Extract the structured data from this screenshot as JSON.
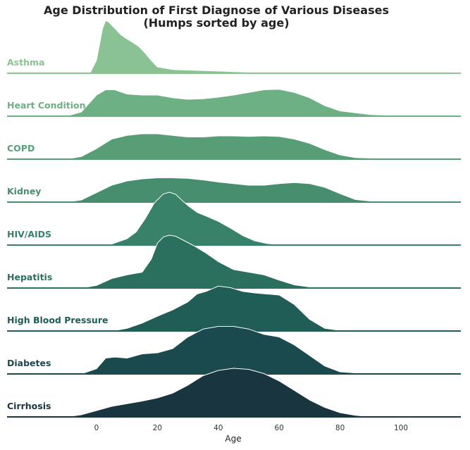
{
  "chart_data": {
    "type": "area",
    "subtype": "ridgeline",
    "title_line1": "Age Distribution of First Diagnose of Various Diseases",
    "title_line2": "(Humps sorted by age)",
    "xlabel": "Age",
    "ylabel": "",
    "xlim": [
      -29,
      121
    ],
    "xticks": [
      0,
      20,
      40,
      60,
      80,
      100
    ],
    "grid": false,
    "legend": "none",
    "series": [
      {
        "name": "Asthma",
        "color": "#8bc293",
        "x": [
          -4,
          -2,
          0,
          1,
          2,
          3,
          4,
          6,
          8,
          10,
          12,
          14,
          16,
          18,
          20,
          25,
          30,
          40,
          50,
          60,
          70,
          80,
          90,
          100
        ],
        "density": [
          0.0,
          0.02,
          0.25,
          0.55,
          0.85,
          1.0,
          0.97,
          0.85,
          0.73,
          0.65,
          0.58,
          0.5,
          0.38,
          0.24,
          0.12,
          0.07,
          0.06,
          0.04,
          0.02,
          0.01,
          0.01,
          0.0,
          0.0,
          0.0
        ]
      },
      {
        "name": "Heart Condition",
        "color": "#6db083",
        "x": [
          -10,
          -5,
          0,
          3,
          6,
          10,
          15,
          20,
          25,
          30,
          35,
          40,
          45,
          50,
          55,
          60,
          65,
          70,
          75,
          80,
          90,
          100,
          110
        ],
        "density": [
          0.0,
          0.08,
          0.4,
          0.5,
          0.5,
          0.42,
          0.4,
          0.4,
          0.35,
          0.32,
          0.33,
          0.36,
          0.4,
          0.45,
          0.5,
          0.51,
          0.45,
          0.35,
          0.2,
          0.1,
          0.03,
          0.01,
          0.0
        ]
      },
      {
        "name": "COPD",
        "color": "#579e76",
        "x": [
          -10,
          -5,
          0,
          5,
          10,
          15,
          20,
          25,
          30,
          35,
          40,
          45,
          50,
          55,
          60,
          65,
          70,
          75,
          80,
          85,
          90,
          100,
          110
        ],
        "density": [
          0.0,
          0.05,
          0.2,
          0.38,
          0.45,
          0.48,
          0.48,
          0.45,
          0.42,
          0.42,
          0.44,
          0.44,
          0.43,
          0.44,
          0.43,
          0.38,
          0.3,
          0.18,
          0.08,
          0.03,
          0.02,
          0.01,
          0.0
        ]
      },
      {
        "name": "Kidney",
        "color": "#478e6e",
        "x": [
          -10,
          -5,
          0,
          5,
          10,
          15,
          20,
          25,
          30,
          35,
          40,
          45,
          50,
          55,
          60,
          65,
          70,
          75,
          80,
          85,
          90,
          100
        ],
        "density": [
          0.0,
          0.04,
          0.18,
          0.32,
          0.4,
          0.44,
          0.46,
          0.46,
          0.45,
          0.42,
          0.38,
          0.35,
          0.32,
          0.32,
          0.35,
          0.37,
          0.35,
          0.28,
          0.16,
          0.05,
          0.02,
          0.0
        ]
      },
      {
        "name": "HIV/AIDS",
        "color": "#378269",
        "x": [
          0,
          5,
          10,
          13,
          16,
          19,
          22,
          24,
          26,
          28,
          30,
          33,
          36,
          40,
          44,
          48,
          52,
          56,
          60,
          65
        ],
        "density": [
          0.0,
          0.02,
          0.12,
          0.25,
          0.5,
          0.8,
          0.97,
          1.0,
          0.96,
          0.85,
          0.75,
          0.62,
          0.55,
          0.45,
          0.32,
          0.18,
          0.08,
          0.03,
          0.01,
          0.0
        ]
      },
      {
        "name": "Hepatitis",
        "color": "#2b705f",
        "x": [
          -5,
          0,
          5,
          10,
          15,
          18,
          20,
          22,
          24,
          26,
          28,
          32,
          36,
          40,
          45,
          50,
          55,
          60,
          65,
          70,
          75,
          80
        ],
        "density": [
          0.0,
          0.05,
          0.18,
          0.25,
          0.3,
          0.55,
          0.85,
          0.97,
          1.0,
          0.98,
          0.92,
          0.8,
          0.66,
          0.5,
          0.35,
          0.3,
          0.25,
          0.15,
          0.06,
          0.02,
          0.01,
          0.0
        ]
      },
      {
        "name": "High Blood Pressure",
        "color": "#205d57",
        "x": [
          5,
          10,
          15,
          20,
          25,
          30,
          33,
          36,
          40,
          44,
          48,
          52,
          56,
          60,
          65,
          70,
          75,
          80,
          90
        ],
        "density": [
          0.0,
          0.05,
          0.15,
          0.28,
          0.4,
          0.55,
          0.7,
          0.75,
          0.85,
          0.82,
          0.75,
          0.72,
          0.7,
          0.68,
          0.5,
          0.22,
          0.05,
          0.01,
          0.0
        ]
      },
      {
        "name": "Diabetes",
        "color": "#1b4a4e",
        "x": [
          -5,
          0,
          3,
          6,
          10,
          15,
          20,
          25,
          30,
          35,
          40,
          45,
          50,
          55,
          60,
          65,
          70,
          75,
          80,
          90
        ],
        "density": [
          0.0,
          0.1,
          0.3,
          0.32,
          0.3,
          0.38,
          0.4,
          0.48,
          0.7,
          0.85,
          0.9,
          0.9,
          0.85,
          0.75,
          0.7,
          0.55,
          0.35,
          0.15,
          0.04,
          0.0
        ]
      },
      {
        "name": "Cirrhosis",
        "color": "#19353f",
        "x": [
          -10,
          -5,
          0,
          5,
          10,
          15,
          20,
          25,
          30,
          35,
          40,
          45,
          50,
          55,
          60,
          65,
          70,
          75,
          80,
          85,
          90,
          100
        ],
        "density": [
          0.0,
          0.04,
          0.12,
          0.2,
          0.25,
          0.3,
          0.36,
          0.45,
          0.6,
          0.78,
          0.88,
          0.92,
          0.9,
          0.82,
          0.68,
          0.5,
          0.32,
          0.18,
          0.08,
          0.03,
          0.01,
          0.0
        ]
      }
    ]
  }
}
